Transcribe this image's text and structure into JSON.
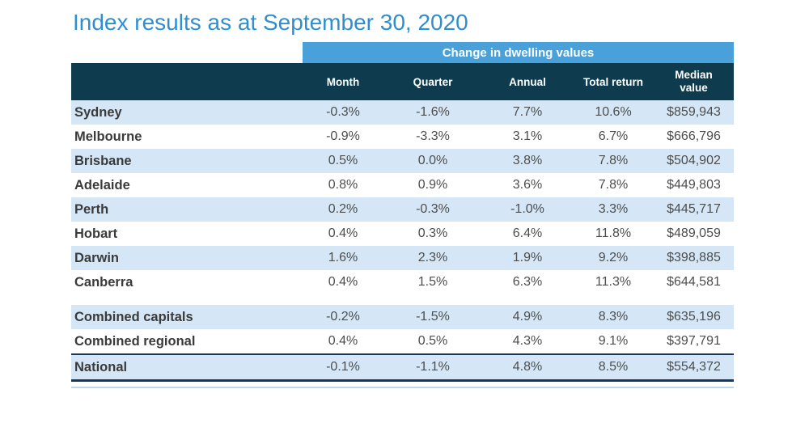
{
  "title": "Index results as at September 30, 2020",
  "band_label": "Change in dwelling values",
  "chart_data": {
    "type": "table",
    "title": "Index results as at September 30, 2020",
    "group_header": "Change in dwelling values",
    "columns": [
      "Month",
      "Quarter",
      "Annual",
      "Total return",
      "Median value"
    ],
    "rows": [
      {
        "label": "Sydney",
        "month": "-0.3%",
        "quarter": "-1.6%",
        "annual": "7.7%",
        "total_return": "10.6%",
        "median_value": "$859,943"
      },
      {
        "label": "Melbourne",
        "month": "-0.9%",
        "quarter": "-3.3%",
        "annual": "3.1%",
        "total_return": "6.7%",
        "median_value": "$666,796"
      },
      {
        "label": "Brisbane",
        "month": "0.5%",
        "quarter": "0.0%",
        "annual": "3.8%",
        "total_return": "7.8%",
        "median_value": "$504,902"
      },
      {
        "label": "Adelaide",
        "month": "0.8%",
        "quarter": "0.9%",
        "annual": "3.6%",
        "total_return": "7.8%",
        "median_value": "$449,803"
      },
      {
        "label": "Perth",
        "month": "0.2%",
        "quarter": "-0.3%",
        "annual": "-1.0%",
        "total_return": "3.3%",
        "median_value": "$445,717"
      },
      {
        "label": "Hobart",
        "month": "0.4%",
        "quarter": "0.3%",
        "annual": "6.4%",
        "total_return": "11.8%",
        "median_value": "$489,059"
      },
      {
        "label": "Darwin",
        "month": "1.6%",
        "quarter": "2.3%",
        "annual": "1.9%",
        "total_return": "9.2%",
        "median_value": "$398,885"
      },
      {
        "label": "Canberra",
        "month": "0.4%",
        "quarter": "1.5%",
        "annual": "6.3%",
        "total_return": "11.3%",
        "median_value": "$644,581"
      },
      {
        "label": "Combined capitals",
        "month": "-0.2%",
        "quarter": "-1.5%",
        "annual": "4.9%",
        "total_return": "8.3%",
        "median_value": "$635,196"
      },
      {
        "label": "Combined regional",
        "month": "0.4%",
        "quarter": "0.5%",
        "annual": "4.3%",
        "total_return": "9.1%",
        "median_value": "$397,791"
      },
      {
        "label": "National",
        "month": "-0.1%",
        "quarter": "-1.1%",
        "annual": "4.8%",
        "total_return": "8.5%",
        "median_value": "$554,372"
      }
    ]
  },
  "colors": {
    "title_blue": "#2F8FCE",
    "band_blue": "#4AA0D8",
    "header_dark_teal": "#0E3B4D",
    "stripe_light_blue": "#D5E7F6",
    "total_border_navy": "#17375E",
    "bottom_rule_blue": "#BDD7EE"
  }
}
